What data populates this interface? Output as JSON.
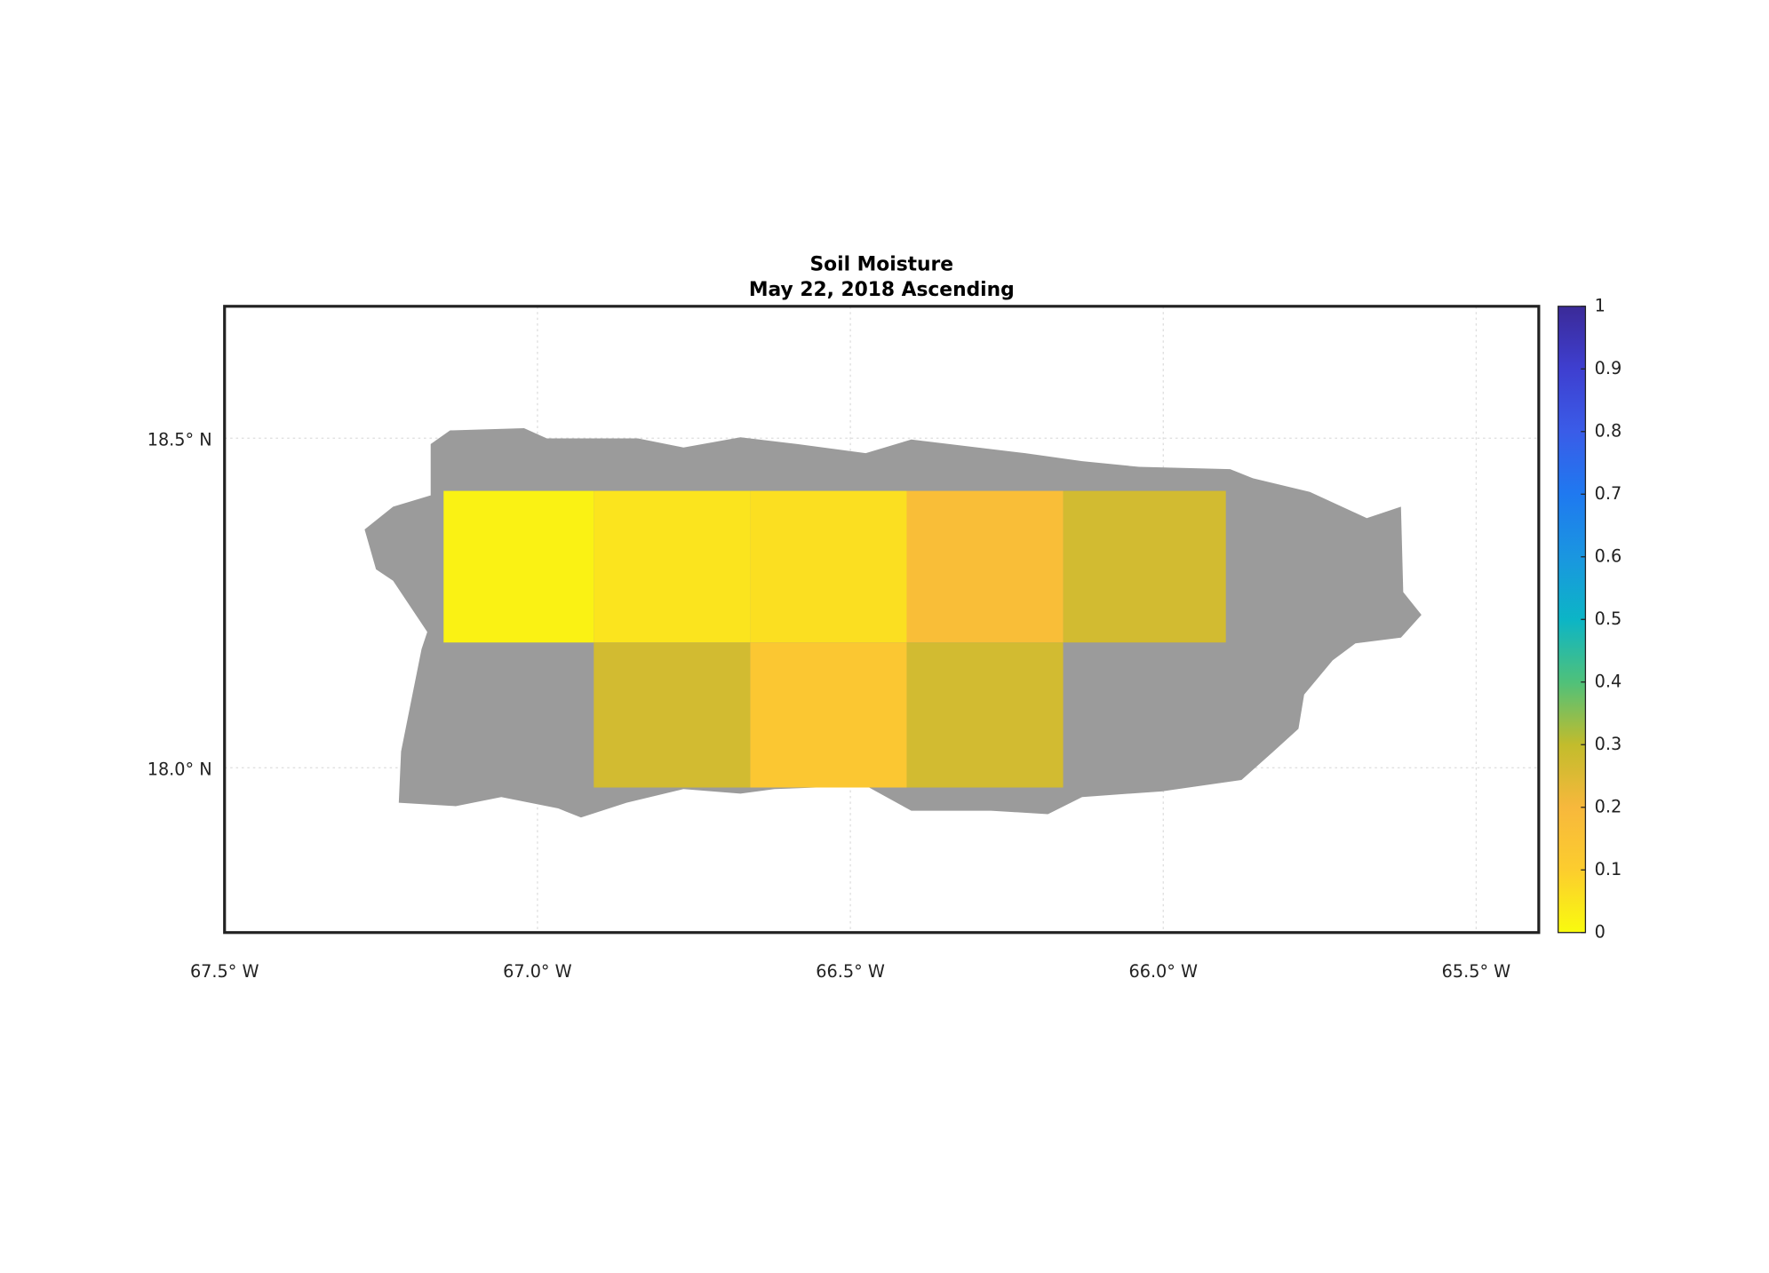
{
  "chart_data": {
    "type": "heatmap",
    "title": "Soil Moisture",
    "subtitle": "May 22, 2018 Ascending",
    "xlim": [
      -67.5,
      -65.4
    ],
    "ylim": [
      17.75,
      18.7
    ],
    "xticks": [
      {
        "value": -67.5,
        "label": "67.5° W"
      },
      {
        "value": -67.0,
        "label": "67.0° W"
      },
      {
        "value": -66.5,
        "label": "66.5° W"
      },
      {
        "value": -66.0,
        "label": "66.0° W"
      },
      {
        "value": -65.5,
        "label": "65.5° W"
      }
    ],
    "yticks": [
      {
        "value": 18.0,
        "label": "18.0° N"
      },
      {
        "value": 18.5,
        "label": "18.5° N"
      }
    ],
    "grid": true,
    "clim": [
      0,
      1
    ],
    "cticks": [
      0,
      0.1,
      0.2,
      0.3,
      0.4,
      0.5,
      0.6,
      0.7,
      0.8,
      0.9,
      1
    ],
    "colormap": [
      "#f9fb0e",
      "#fccd2e",
      "#f7b83c",
      "#c2bc2c",
      "#4fc17a",
      "#0cb5c6",
      "#1a96e0",
      "#1f79f0",
      "#3a5ce8",
      "#3e3fd0",
      "#3b2a98"
    ],
    "cells": [
      {
        "lon": [
          -67.15,
          -66.91
        ],
        "lat": [
          18.19,
          18.42
        ],
        "value": 0.02
      },
      {
        "lon": [
          -66.91,
          -66.66
        ],
        "lat": [
          18.19,
          18.42
        ],
        "value": 0.05
      },
      {
        "lon": [
          -66.66,
          -66.41
        ],
        "lat": [
          18.19,
          18.42
        ],
        "value": 0.06
      },
      {
        "lon": [
          -66.41,
          -66.16
        ],
        "lat": [
          18.19,
          18.42
        ],
        "value": 0.17
      },
      {
        "lon": [
          -66.16,
          -65.9
        ],
        "lat": [
          18.19,
          18.42
        ],
        "value": 0.27
      },
      {
        "lon": [
          -66.91,
          -66.66
        ],
        "lat": [
          17.97,
          18.19
        ],
        "value": 0.27
      },
      {
        "lon": [
          -66.66,
          -66.41
        ],
        "lat": [
          17.97,
          18.19
        ],
        "value": 0.13
      },
      {
        "lon": [
          -66.41,
          -66.16
        ],
        "lat": [
          17.97,
          18.19
        ],
        "value": 0.27
      }
    ]
  }
}
